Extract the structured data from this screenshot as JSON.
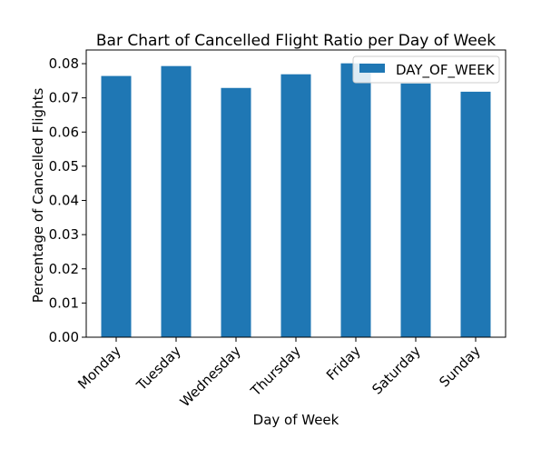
{
  "chart_data": {
    "type": "bar",
    "title": "Bar Chart of Cancelled Flight Ratio per Day of Week",
    "xlabel": "Day of Week",
    "ylabel": "Percentage of Cancelled Flights",
    "categories": [
      "Monday",
      "Tuesday",
      "Wednesday",
      "Thursday",
      "Friday",
      "Saturday",
      "Sunday"
    ],
    "series": [
      {
        "name": "DAY_OF_WEEK",
        "color": "#1f77b4",
        "values": [
          0.0764,
          0.0793,
          0.0729,
          0.0769,
          0.0801,
          0.0742,
          0.0718
        ]
      }
    ],
    "ylim": [
      0,
      0.084
    ],
    "yticks": [
      "0.00",
      "0.01",
      "0.02",
      "0.03",
      "0.04",
      "0.05",
      "0.06",
      "0.07",
      "0.08"
    ],
    "ytick_values": [
      0,
      0.01,
      0.02,
      0.03,
      0.04,
      0.05,
      0.06,
      0.07,
      0.08
    ],
    "grid": false,
    "legend_position": "top-right",
    "x_tick_rotation": 45
  }
}
